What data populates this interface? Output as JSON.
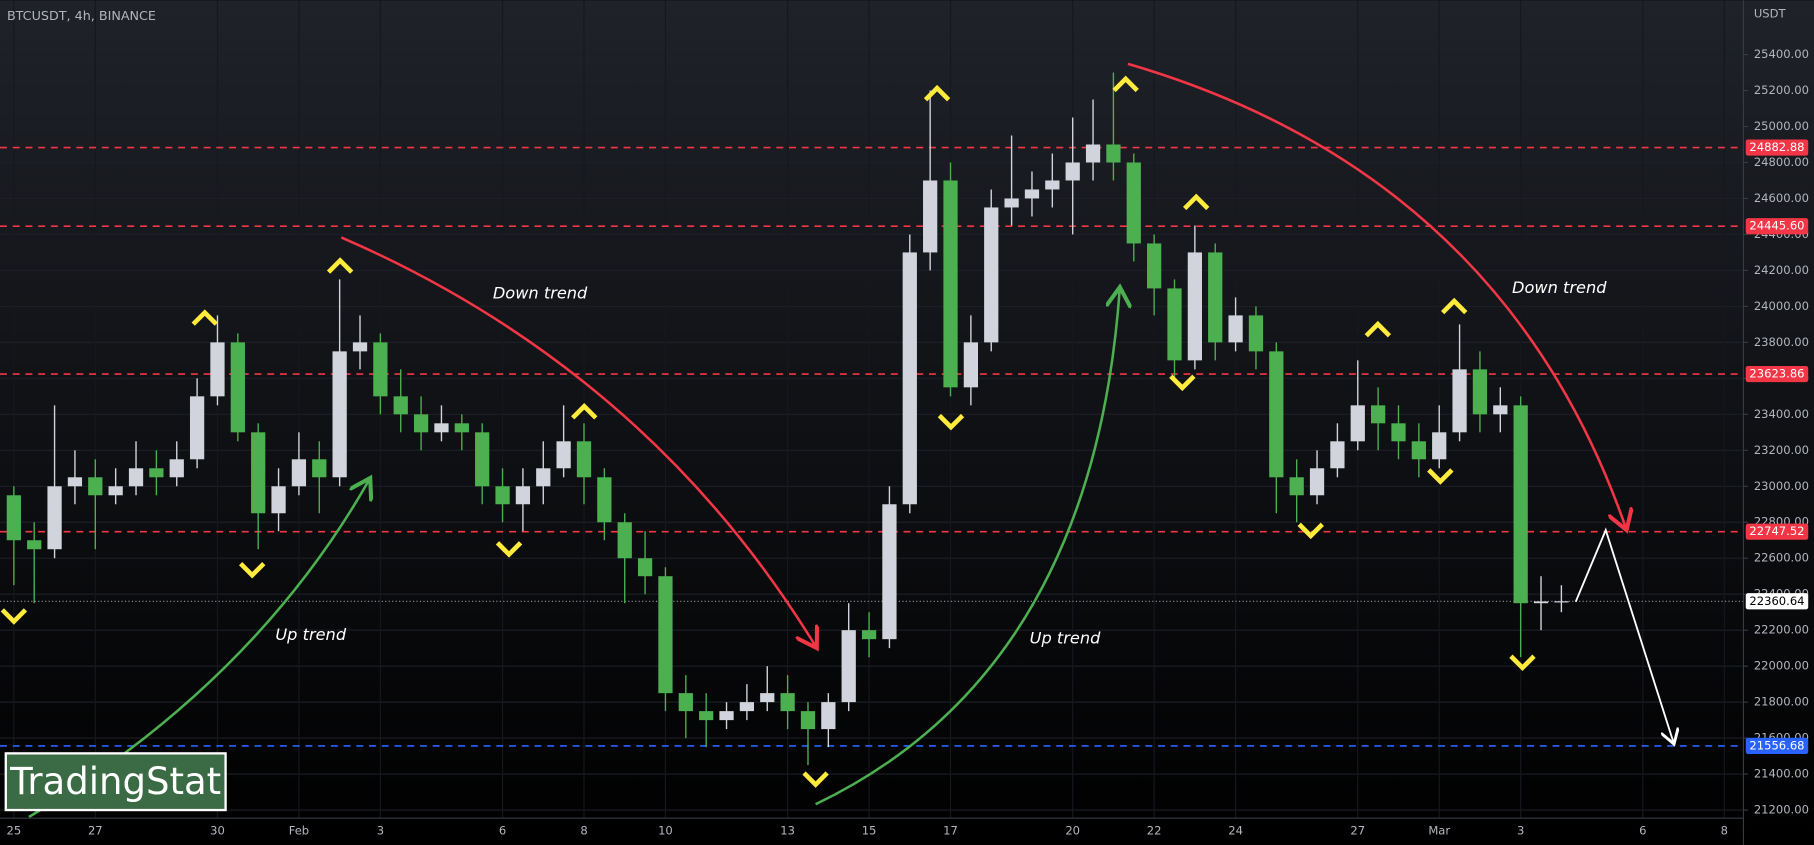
{
  "chart_data": {
    "type": "candlestick",
    "title": "BTCUSDT, 4h, BINANCE",
    "y_axis_label": "USDT",
    "watermark": "TradingStat",
    "up_color": "#d1d4dc",
    "down_color": "#4caf50",
    "x": [
      0,
      0.5,
      1,
      1.5,
      2,
      2.5,
      3,
      3.5,
      4,
      4.5,
      5,
      5.5,
      6,
      6.5,
      7,
      7.5,
      8,
      8.5,
      9,
      9.5,
      10,
      10.5,
      11,
      11.5,
      12,
      12.5,
      13,
      13.5,
      14,
      14.5,
      15,
      15.5,
      16,
      16.5,
      17,
      17.5,
      18,
      18.5,
      19,
      19.5,
      20,
      20.5,
      21,
      21.5,
      22,
      22.5,
      23,
      23.5,
      24,
      24.5,
      25,
      25.5,
      26,
      26.5,
      27,
      27.5,
      28,
      28.5,
      29,
      29.5,
      30,
      30.5,
      31,
      31.5,
      32,
      32.5,
      33,
      33.5,
      34,
      34.5,
      35,
      35.5,
      36,
      36.5,
      37,
      37.5,
      38
    ],
    "open": [
      22950,
      22700,
      22650,
      23000,
      23050,
      22950,
      23000,
      23100,
      23050,
      23150,
      23500,
      23800,
      23300,
      22850,
      23000,
      23150,
      23050,
      23750,
      23800,
      23500,
      23400,
      23300,
      23350,
      23300,
      23000,
      22900,
      23000,
      23100,
      23250,
      23050,
      22800,
      22600,
      22500,
      21850,
      21750,
      21700,
      21750,
      21800,
      21850,
      21750,
      21650,
      21800,
      22200,
      22150,
      22900,
      24300,
      24700,
      23550,
      23800,
      24550,
      24600,
      24650,
      24700,
      24800,
      24900,
      24800,
      24350,
      24100,
      23700,
      24300,
      23800,
      23950,
      23750,
      23050,
      22950,
      23100,
      23250,
      23450,
      23350,
      23250,
      23150,
      23300,
      23650,
      23400,
      23450,
      22350,
      22360
    ],
    "high": [
      23000,
      22800,
      23450,
      23200,
      23150,
      23100,
      23250,
      23200,
      23250,
      23600,
      23950,
      23850,
      23350,
      23100,
      23300,
      23250,
      24150,
      23950,
      23850,
      23650,
      23500,
      23450,
      23400,
      23350,
      23100,
      23100,
      23250,
      23450,
      23350,
      23100,
      22850,
      22750,
      22550,
      21950,
      21850,
      21800,
      21900,
      22000,
      21950,
      21800,
      21850,
      22350,
      22300,
      23000,
      24400,
      25200,
      24800,
      23950,
      24650,
      24950,
      24750,
      24850,
      25050,
      25150,
      25300,
      24850,
      24400,
      24150,
      24450,
      24350,
      24050,
      24000,
      23800,
      23150,
      23200,
      23350,
      23700,
      23550,
      23450,
      23350,
      23450,
      23900,
      23750,
      23550,
      23500,
      22500,
      22450
    ],
    "low": [
      22450,
      22350,
      22600,
      22900,
      22650,
      22900,
      22950,
      22950,
      23000,
      23100,
      23450,
      23250,
      22650,
      22750,
      22950,
      22850,
      23000,
      23650,
      23400,
      23300,
      23200,
      23250,
      23200,
      22900,
      22800,
      22750,
      22900,
      23050,
      22900,
      22700,
      22350,
      22400,
      21750,
      21600,
      21550,
      21650,
      21700,
      21750,
      21650,
      21450,
      21550,
      21750,
      22050,
      22100,
      22850,
      24200,
      23500,
      23450,
      23750,
      24450,
      24500,
      24550,
      24400,
      24700,
      24700,
      24250,
      23950,
      23600,
      23650,
      23700,
      23750,
      23650,
      22850,
      22800,
      22900,
      23050,
      23200,
      23200,
      23150,
      23050,
      23100,
      23250,
      23300,
      23300,
      22050,
      22200,
      22300
    ],
    "close": [
      22700,
      22650,
      23000,
      23050,
      22950,
      23000,
      23100,
      23050,
      23150,
      23500,
      23800,
      23300,
      22850,
      23000,
      23150,
      23050,
      23750,
      23800,
      23500,
      23400,
      23300,
      23350,
      23300,
      23000,
      22900,
      23000,
      23100,
      23250,
      23050,
      22800,
      22600,
      22500,
      21850,
      21750,
      21700,
      21750,
      21800,
      21850,
      21750,
      21650,
      21800,
      22200,
      22150,
      22900,
      24300,
      24700,
      23550,
      23800,
      24550,
      24600,
      24650,
      24700,
      24800,
      24900,
      24800,
      24350,
      24100,
      23700,
      24300,
      23800,
      23950,
      23750,
      23050,
      22950,
      23100,
      23250,
      23450,
      23350,
      23250,
      23150,
      23300,
      23650,
      23400,
      23450,
      22350,
      22360,
      22360.64
    ],
    "xlim": [
      -0.34,
      42.47
    ],
    "xticks": [
      {
        "value": 0,
        "label": "25"
      },
      {
        "value": 2,
        "label": "27"
      },
      {
        "value": 5,
        "label": "30"
      },
      {
        "value": 7,
        "label": "Feb"
      },
      {
        "value": 9,
        "label": "3"
      },
      {
        "value": 12,
        "label": "6"
      },
      {
        "value": 14,
        "label": "8"
      },
      {
        "value": 16,
        "label": "10"
      },
      {
        "value": 19,
        "label": "13"
      },
      {
        "value": 21,
        "label": "15"
      },
      {
        "value": 23,
        "label": "17"
      },
      {
        "value": 26,
        "label": "20"
      },
      {
        "value": 28,
        "label": "22"
      },
      {
        "value": 30,
        "label": "24"
      },
      {
        "value": 33,
        "label": "27"
      },
      {
        "value": 35,
        "label": "Mar"
      },
      {
        "value": 37,
        "label": "3"
      },
      {
        "value": 40,
        "label": "6"
      },
      {
        "value": 42,
        "label": "8"
      }
    ],
    "ylim": [
      21155,
      25702
    ],
    "yticks": [
      {
        "value": 21200,
        "label": "21200.00"
      },
      {
        "value": 21400,
        "label": "21400.00"
      },
      {
        "value": 21600,
        "label": "21600.00"
      },
      {
        "value": 21800,
        "label": "21800.00"
      },
      {
        "value": 22000,
        "label": "22000.00"
      },
      {
        "value": 22200,
        "label": "22200.00"
      },
      {
        "value": 22400,
        "label": "22400.00"
      },
      {
        "value": 22600,
        "label": "22600.00"
      },
      {
        "value": 22800,
        "label": "22800.00"
      },
      {
        "value": 23000,
        "label": "23000.00"
      },
      {
        "value": 23200,
        "label": "23200.00"
      },
      {
        "value": 23400,
        "label": "23400.00"
      },
      {
        "value": 23600,
        "label": "23600.00"
      },
      {
        "value": 23800,
        "label": "23800.00"
      },
      {
        "value": 24000,
        "label": "24000.00"
      },
      {
        "value": 24200,
        "label": "24200.00"
      },
      {
        "value": 24400,
        "label": "24400.00"
      },
      {
        "value": 24600,
        "label": "24600.00"
      },
      {
        "value": 24800,
        "label": "24800.00"
      },
      {
        "value": 25000,
        "label": "25000.00"
      },
      {
        "value": 25200,
        "label": "25200.00"
      },
      {
        "value": 25400,
        "label": "25400.00"
      }
    ],
    "levels": [
      {
        "value": 24882.88,
        "label": "24882.88",
        "color": "#f23645"
      },
      {
        "value": 24445.6,
        "label": "24445.60",
        "color": "#f23645"
      },
      {
        "value": 23623.86,
        "label": "23623.86",
        "color": "#f23645"
      },
      {
        "value": 22747.52,
        "label": "22747.52",
        "color": "#f23645"
      },
      {
        "value": 21556.68,
        "label": "21556.68",
        "color": "#2962ff"
      }
    ],
    "last_price": {
      "value": 22360.64,
      "label": "22360.64",
      "color": "#ffffff"
    },
    "annotations": [
      "Down trend",
      "Down trend",
      "Up trend",
      "Up trend"
    ]
  }
}
